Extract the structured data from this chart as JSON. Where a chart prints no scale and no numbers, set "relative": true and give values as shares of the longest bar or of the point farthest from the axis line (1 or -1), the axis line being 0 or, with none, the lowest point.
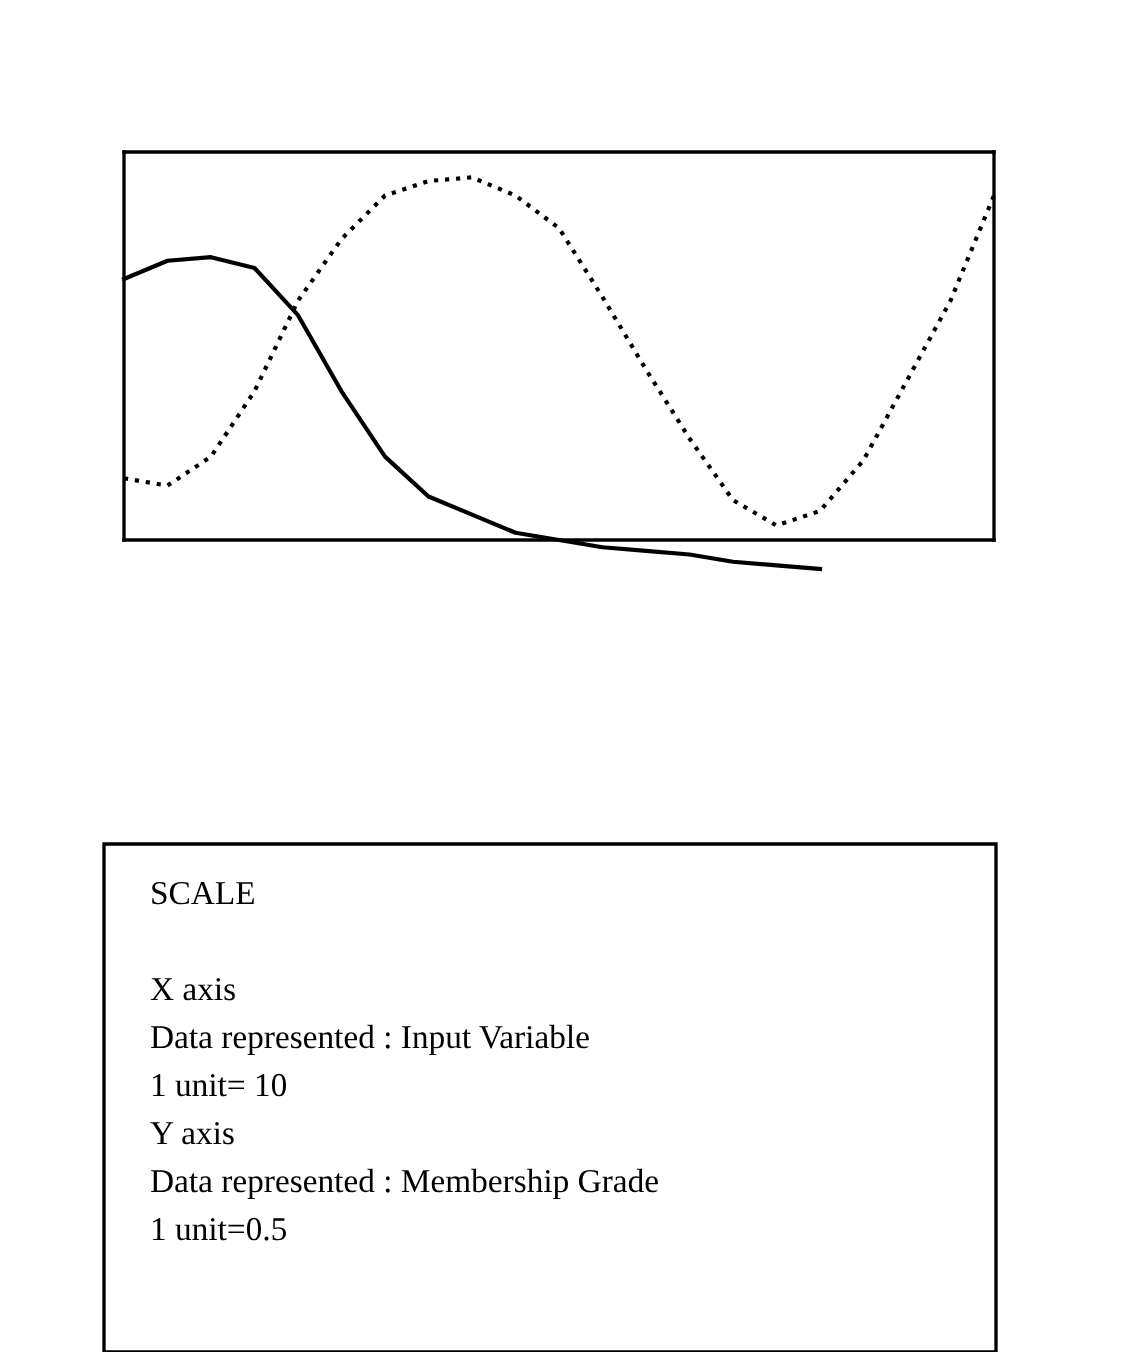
{
  "chart_data": {
    "type": "line",
    "relative": true,
    "categories": [
      null,
      null,
      null,
      null,
      null,
      null,
      null,
      null,
      null,
      null,
      null,
      null,
      null,
      null,
      null,
      null,
      null,
      null,
      null,
      null,
      null
    ],
    "series": [
      {
        "color": "#000000",
        "line_style": "solid",
        "values": [
          0.72,
          0.77,
          0.78,
          0.75,
          0.62,
          0.41,
          0.23,
          0.12,
          0.07,
          0.02,
          0.0,
          -0.02,
          -0.03,
          -0.04,
          -0.06,
          -0.07,
          -0.08,
          null,
          null,
          null,
          null
        ]
      },
      {
        "color": "#000000",
        "line_style": "dotted",
        "values": [
          0.17,
          0.15,
          0.23,
          0.41,
          0.66,
          0.83,
          0.95,
          0.99,
          1.0,
          0.95,
          0.86,
          0.67,
          0.47,
          0.28,
          0.11,
          0.04,
          0.08,
          0.22,
          0.44,
          0.66,
          0.95
        ]
      }
    ],
    "grid": false,
    "legend": false,
    "tick_labels": false,
    "annotations": [
      "SCALE",
      "X axis",
      "Data represented : Input Variable",
      "1 unit= 10",
      "Y axis",
      "Data represented : Membership Grade",
      "1 unit=0.5"
    ]
  }
}
